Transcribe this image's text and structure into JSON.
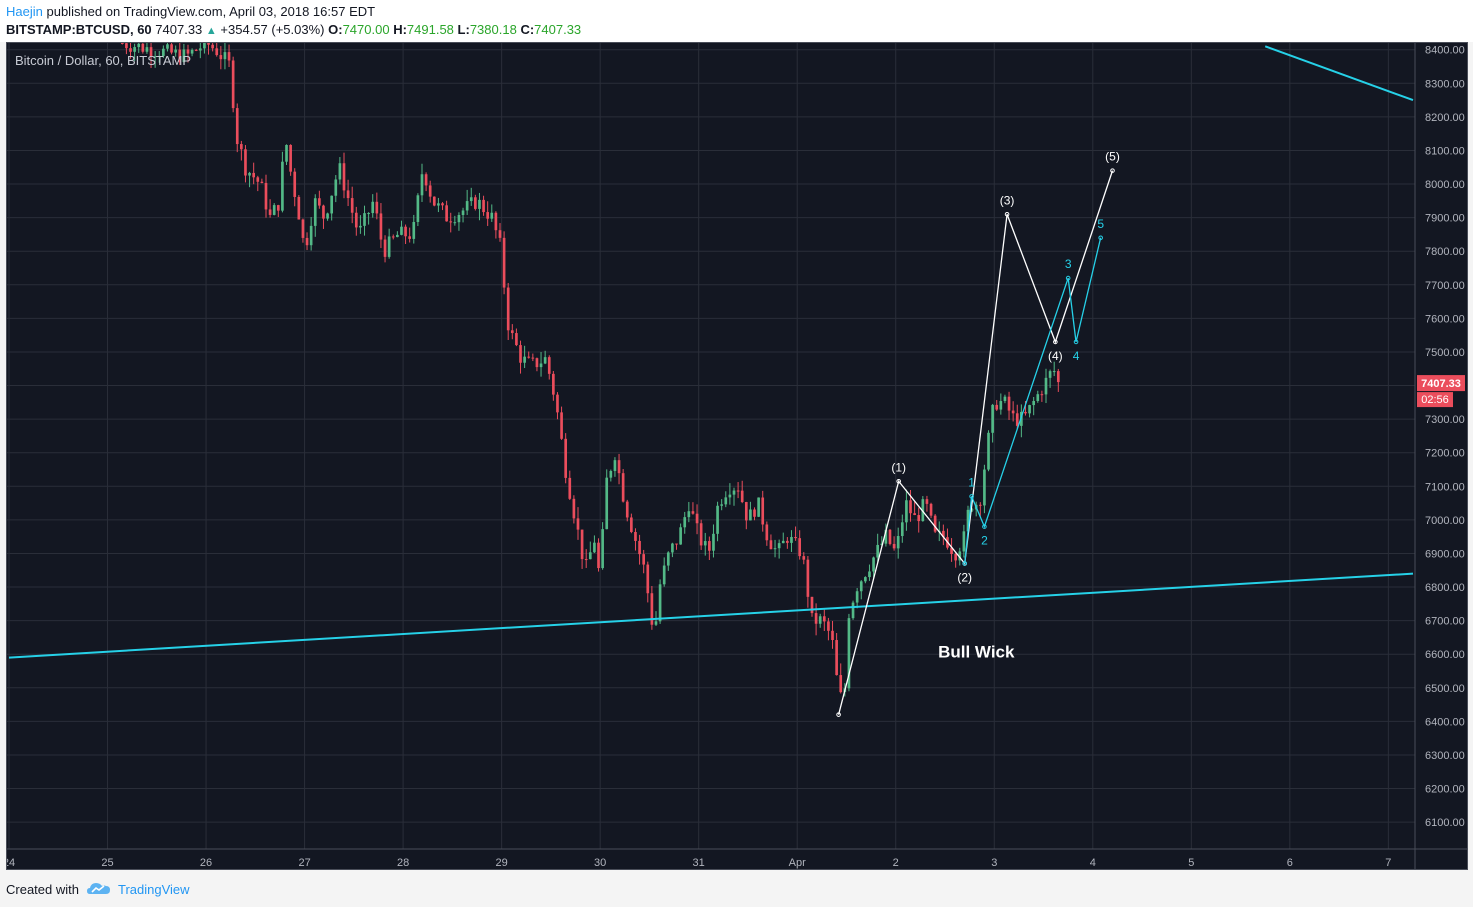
{
  "header": {
    "author": "Haejin",
    "published": "published on TradingView.com, April 03, 2018 16:57 EDT",
    "symbol": "BITSTAMP:BTCUSD, 60",
    "last": "7407.33",
    "change": "+354.57 (+5.03%)",
    "o_label": "O:",
    "o": "7470.00",
    "h_label": "H:",
    "h": "7491.58",
    "l_label": "L:",
    "l": "7380.18",
    "c_label": "C:",
    "c": "7407.33"
  },
  "footer": {
    "created": "Created with",
    "brand": "TradingView"
  },
  "chart_data": {
    "type": "candlestick",
    "legend": "Bitcoin / Dollar, 60, BITSTAMP",
    "ylim": [
      6020,
      8420
    ],
    "y_ticks": [
      6100,
      6200,
      6300,
      6400,
      6500,
      6600,
      6700,
      6800,
      6900,
      7000,
      7100,
      7200,
      7300,
      7400,
      7500,
      7600,
      7700,
      7800,
      7900,
      8000,
      8100,
      8200,
      8300,
      8400
    ],
    "x_ticks": [
      "24",
      "25",
      "26",
      "27",
      "28",
      "29",
      "30",
      "31",
      "Apr",
      "2",
      "3",
      "4",
      "5",
      "6",
      "7"
    ],
    "x_tick_pos": [
      0,
      1,
      2,
      3,
      4,
      5,
      6,
      7,
      8,
      9,
      10,
      11,
      12,
      13,
      14
    ],
    "x_range": [
      0,
      14.25
    ],
    "last_price_tag": "7407.33",
    "countdown_tag": "02:56",
    "price_path": [
      [
        1.15,
        8420
      ],
      [
        1.8,
        8380
      ],
      [
        2.0,
        8420
      ],
      [
        2.1,
        8400
      ],
      [
        2.25,
        8350
      ],
      [
        2.3,
        8150
      ],
      [
        2.4,
        8050
      ],
      [
        2.55,
        8000
      ],
      [
        2.65,
        7900
      ],
      [
        2.75,
        7950
      ],
      [
        2.8,
        8150
      ],
      [
        2.85,
        8050
      ],
      [
        2.95,
        7900
      ],
      [
        3.0,
        7800
      ],
      [
        3.1,
        7950
      ],
      [
        3.2,
        7900
      ],
      [
        3.35,
        8050
      ],
      [
        3.45,
        7950
      ],
      [
        3.55,
        7850
      ],
      [
        3.7,
        7950
      ],
      [
        3.8,
        7800
      ],
      [
        3.95,
        7850
      ],
      [
        4.1,
        7850
      ],
      [
        4.2,
        8050
      ],
      [
        4.3,
        7950
      ],
      [
        4.45,
        7900
      ],
      [
        4.6,
        7920
      ],
      [
        4.75,
        7950
      ],
      [
        4.9,
        7900
      ],
      [
        5.0,
        7800
      ],
      [
        5.05,
        7600
      ],
      [
        5.1,
        7550
      ],
      [
        5.2,
        7480
      ],
      [
        5.3,
        7460
      ],
      [
        5.45,
        7480
      ],
      [
        5.55,
        7350
      ],
      [
        5.65,
        7150
      ],
      [
        5.75,
        7000
      ],
      [
        5.85,
        6850
      ],
      [
        5.95,
        6950
      ],
      [
        6.0,
        6800
      ],
      [
        6.05,
        7100
      ],
      [
        6.15,
        7200
      ],
      [
        6.25,
        7050
      ],
      [
        6.35,
        6950
      ],
      [
        6.45,
        6850
      ],
      [
        6.5,
        6750
      ],
      [
        6.55,
        6650
      ],
      [
        6.6,
        6800
      ],
      [
        6.7,
        6900
      ],
      [
        6.8,
        6950
      ],
      [
        6.9,
        7050
      ],
      [
        7.0,
        6950
      ],
      [
        7.1,
        6900
      ],
      [
        7.2,
        7050
      ],
      [
        7.3,
        7100
      ],
      [
        7.4,
        7100
      ],
      [
        7.5,
        7000
      ],
      [
        7.6,
        7050
      ],
      [
        7.7,
        6950
      ],
      [
        7.8,
        6900
      ],
      [
        7.9,
        6950
      ],
      [
        8.05,
        6900
      ],
      [
        8.1,
        6800
      ],
      [
        8.15,
        6700
      ],
      [
        8.25,
        6700
      ],
      [
        8.35,
        6650
      ],
      [
        8.42,
        6480
      ],
      [
        8.48,
        6460
      ],
      [
        8.5,
        6700
      ],
      [
        8.6,
        6800
      ],
      [
        8.7,
        6850
      ],
      [
        8.8,
        6900
      ],
      [
        8.9,
        6950
      ],
      [
        9.0,
        6900
      ],
      [
        9.1,
        7050
      ],
      [
        9.2,
        7000
      ],
      [
        9.3,
        7050
      ],
      [
        9.4,
        6950
      ],
      [
        9.5,
        6950
      ],
      [
        9.6,
        6900
      ],
      [
        9.7,
        6950
      ],
      [
        9.75,
        7050
      ],
      [
        9.85,
        7050
      ],
      [
        9.92,
        7200
      ],
      [
        10.0,
        7350
      ],
      [
        10.1,
        7350
      ],
      [
        10.2,
        7300
      ],
      [
        10.3,
        7300
      ],
      [
        10.4,
        7350
      ],
      [
        10.5,
        7400
      ],
      [
        10.6,
        7450
      ],
      [
        10.65,
        7407
      ]
    ],
    "support_line": {
      "from": [
        0,
        6590
      ],
      "to": [
        14.25,
        6840
      ]
    },
    "resistance_line": {
      "from": [
        12.75,
        8410
      ],
      "to": [
        14.25,
        8250
      ]
    },
    "primary_waves": {
      "points": [
        [
          8.42,
          6420
        ],
        [
          9.03,
          7115
        ],
        [
          9.7,
          6870
        ],
        [
          10.13,
          7910
        ],
        [
          10.62,
          7530
        ],
        [
          11.2,
          8040
        ]
      ],
      "labels": [
        "(1)",
        "(2)",
        "(3)",
        "(4)",
        "(5)"
      ]
    },
    "minor_waves": {
      "points": [
        [
          9.7,
          6870
        ],
        [
          9.77,
          7070
        ],
        [
          9.9,
          6980
        ],
        [
          10.75,
          7720
        ],
        [
          10.83,
          7530
        ],
        [
          11.08,
          7840
        ]
      ],
      "labels": [
        "1",
        "2",
        "3",
        "4",
        "5"
      ]
    },
    "annotation": "Bull Wick",
    "annotation_pos": [
      9.43,
      6590
    ]
  }
}
